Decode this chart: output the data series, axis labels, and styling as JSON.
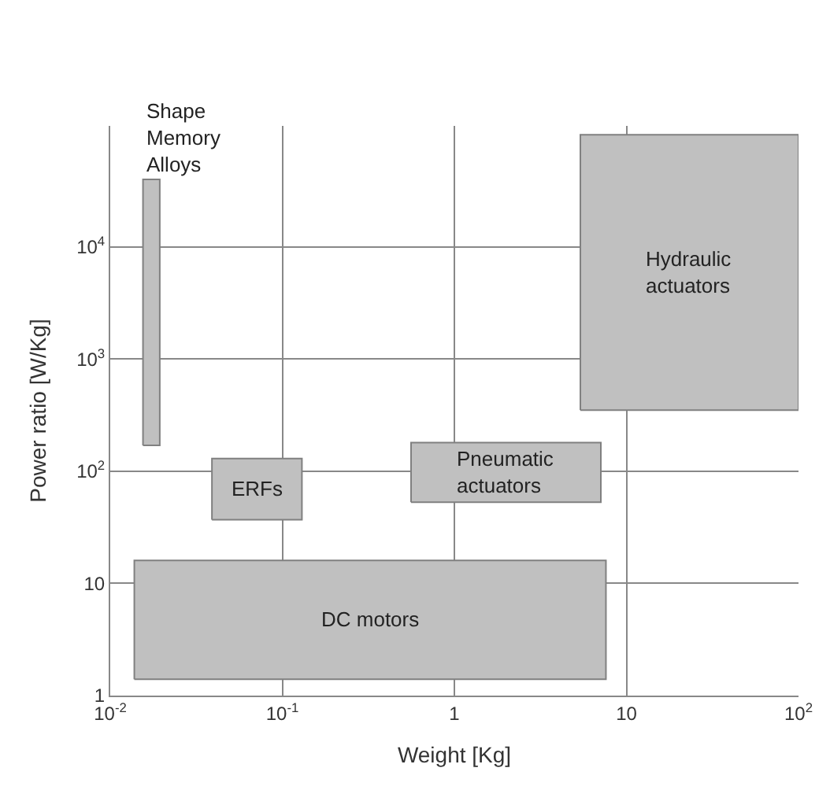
{
  "chart_data": {
    "type": "area",
    "xlabel": "Weight [Kg]",
    "ylabel": "Power ratio [W/Kg]",
    "log": "xy",
    "grid": true,
    "legend": false,
    "xlim": [
      0.01,
      100
    ],
    "ylim": [
      1,
      120000
    ],
    "xticks": [
      {
        "value": 0.01,
        "label": "10$^{-2}$"
      },
      {
        "value": 0.1,
        "label": "10$^{-1}$"
      },
      1,
      10,
      {
        "value": 100,
        "label": "10$^{2}$"
      }
    ],
    "yticks": [
      1,
      10,
      {
        "value": 100,
        "label": "10$^{2}$"
      },
      {
        "value": 1000,
        "label": "10$^{3}$"
      },
      {
        "value": 10000,
        "label": "10$^{4}$"
      }
    ],
    "series": [
      {
        "name": "Shape\nMemory\nAlloys",
        "color": "#c0c0c0",
        "x": [
          0.0155,
          0.0194,
          0.0194,
          0.0155,
          0.0155
        ],
        "values": [
          170,
          170,
          40000,
          40000,
          170
        ]
      },
      {
        "name": "Hydraulic\nactuators",
        "color": "#c0c0c0",
        "x": [
          5.4,
          100,
          100,
          5.4,
          5.4
        ],
        "values": [
          350,
          350,
          100000,
          100000,
          350
        ]
      },
      {
        "name": "ERFs",
        "color": "#c0c0c0",
        "x": [
          0.039,
          0.13,
          0.13,
          0.039,
          0.039
        ],
        "values": [
          37,
          37,
          130,
          130,
          37
        ]
      },
      {
        "name": "Pneumatic\nactuators",
        "color": "#c0c0c0",
        "x": [
          0.56,
          7.1,
          7.1,
          0.56,
          0.56
        ],
        "values": [
          53,
          53,
          180,
          180,
          53
        ]
      },
      {
        "name": "DC motors",
        "color": "#c0c0c0",
        "x": [
          0.0138,
          7.6,
          7.6,
          0.0138,
          0.0138
        ],
        "values": [
          1.4,
          1.4,
          16,
          16,
          1.4
        ]
      }
    ]
  }
}
